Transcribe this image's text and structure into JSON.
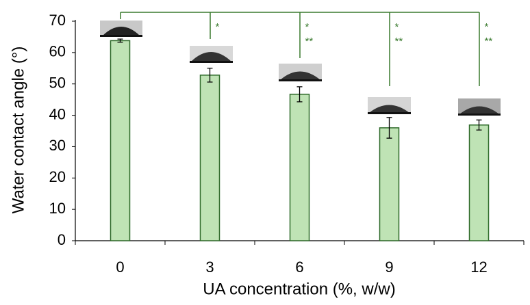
{
  "chart_data": {
    "type": "bar",
    "x_label": "UA concentration (%, w/w)",
    "y_label": "Water contact angle (°)",
    "categories": [
      "0",
      "3",
      "6",
      "9",
      "12"
    ],
    "values": [
      63.8,
      52.8,
      46.7,
      36.0,
      36.9
    ],
    "errors": [
      0.5,
      2.2,
      2.4,
      3.3,
      1.6
    ],
    "color": "#bfe3b5",
    "edge_color": "#2f6a2a",
    "significance": [
      null,
      [
        "*"
      ],
      [
        "*",
        "**"
      ],
      [
        "*",
        "**"
      ],
      [
        "*",
        "**"
      ]
    ],
    "ylim": [
      0,
      70
    ],
    "yticks": [
      0,
      10,
      20,
      30,
      40,
      50,
      60,
      70
    ]
  }
}
